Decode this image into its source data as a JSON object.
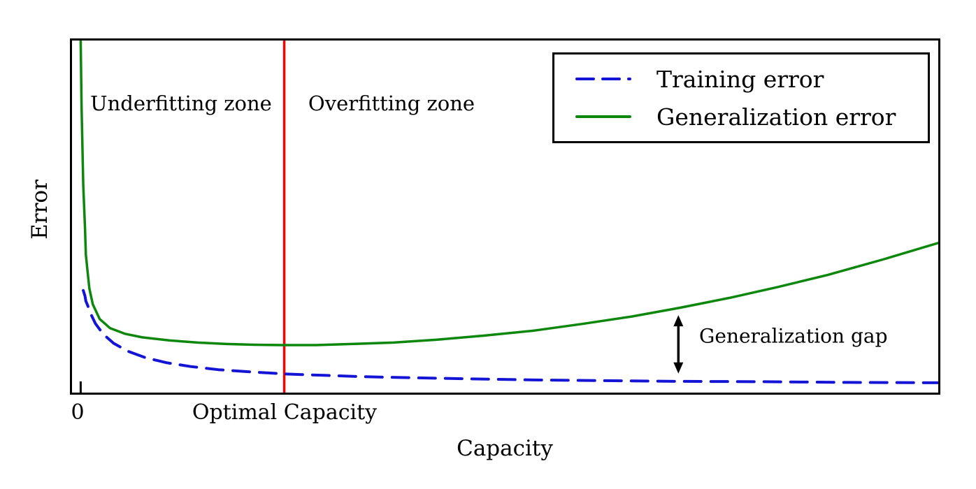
{
  "figure": {
    "ylabel": "Error",
    "xlabel": "Capacity",
    "x_tick_zero": "0",
    "x_tick_optimal": "Optimal Capacity",
    "zone_left": "Underfitting zone",
    "zone_right": "Overfitting zone",
    "gap_label": "Generalization gap"
  },
  "legend": {
    "position": "upper right",
    "items": [
      {
        "label": "Training error",
        "style": "dashed",
        "color": "#1414d6"
      },
      {
        "label": "Generalization error",
        "style": "solid",
        "color": "#0c870c"
      }
    ]
  },
  "colors": {
    "training": "#1414d6",
    "generalization": "#0c870c",
    "optimal_capacity_line": "#ff0000",
    "axis": "#000000",
    "background": "#ffffff"
  },
  "chart_data": {
    "type": "line",
    "title": "",
    "xlabel": "Capacity",
    "ylabel": "Error",
    "grid": false,
    "axes_numeric": false,
    "coords": "normalized 0-1; x left-to-right, err bottom-to-top of plot area",
    "legend_position": "upper right",
    "x_axis_ticks": [
      {
        "pos": 0.01,
        "label": "0"
      },
      {
        "pos": 0.245,
        "label": "Optimal Capacity"
      }
    ],
    "annotations": [
      "Underfitting zone",
      "Overfitting zone",
      "Generalization gap"
    ],
    "boundary_x": 0.245,
    "boundary_color": "#ff0000",
    "zero_tick_x": 0.01,
    "gap_arrow": {
      "x": 0.7,
      "top_err": 0.22,
      "bottom_err": 0.054
    },
    "series": [
      {
        "name": "Training error",
        "color": "#1414d6",
        "style": "dashed",
        "dash": [
          24,
          14
        ],
        "points": [
          [
            0.013,
            0.29
          ],
          [
            0.015,
            0.274
          ],
          [
            0.016,
            0.26
          ],
          [
            0.018,
            0.248
          ],
          [
            0.021,
            0.227
          ],
          [
            0.027,
            0.196
          ],
          [
            0.036,
            0.166
          ],
          [
            0.048,
            0.14
          ],
          [
            0.065,
            0.117
          ],
          [
            0.085,
            0.099
          ],
          [
            0.109,
            0.085
          ],
          [
            0.137,
            0.074
          ],
          [
            0.169,
            0.065
          ],
          [
            0.206,
            0.059
          ],
          [
            0.246,
            0.053
          ],
          [
            0.291,
            0.049
          ],
          [
            0.339,
            0.045
          ],
          [
            0.395,
            0.042
          ],
          [
            0.46,
            0.039
          ],
          [
            0.533,
            0.036
          ],
          [
            0.613,
            0.034
          ],
          [
            0.702,
            0.032
          ],
          [
            0.799,
            0.031
          ],
          [
            0.896,
            0.029
          ],
          [
            1.0,
            0.028
          ]
        ]
      },
      {
        "name": "Generalization error",
        "color": "#0c870c",
        "style": "solid",
        "points": [
          [
            0.01,
            1.0
          ],
          [
            0.011,
            0.819
          ],
          [
            0.013,
            0.588
          ],
          [
            0.015,
            0.466
          ],
          [
            0.016,
            0.392
          ],
          [
            0.018,
            0.343
          ],
          [
            0.02,
            0.296
          ],
          [
            0.024,
            0.251
          ],
          [
            0.032,
            0.209
          ],
          [
            0.044,
            0.183
          ],
          [
            0.061,
            0.167
          ],
          [
            0.081,
            0.157
          ],
          [
            0.113,
            0.148
          ],
          [
            0.145,
            0.142
          ],
          [
            0.178,
            0.138
          ],
          [
            0.21,
            0.136
          ],
          [
            0.242,
            0.135
          ],
          [
            0.282,
            0.135
          ],
          [
            0.323,
            0.138
          ],
          [
            0.371,
            0.142
          ],
          [
            0.42,
            0.15
          ],
          [
            0.476,
            0.162
          ],
          [
            0.533,
            0.176
          ],
          [
            0.589,
            0.195
          ],
          [
            0.646,
            0.216
          ],
          [
            0.702,
            0.241
          ],
          [
            0.759,
            0.269
          ],
          [
            0.815,
            0.3
          ],
          [
            0.872,
            0.334
          ],
          [
            0.936,
            0.378
          ],
          [
            1.0,
            0.425
          ]
        ]
      }
    ]
  }
}
